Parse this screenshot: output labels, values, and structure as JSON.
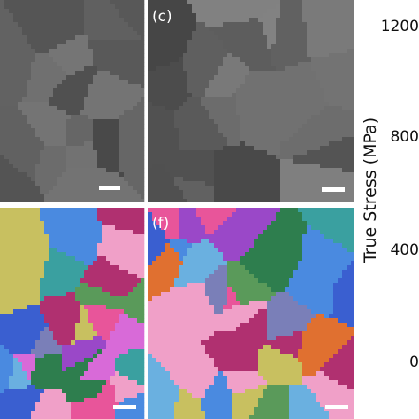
{
  "panels": [
    {
      "label": "(c)"
    },
    {
      "label": "(f)"
    }
  ],
  "axis": {
    "label": "True Stress (MPa)",
    "ticks": [
      1200,
      800,
      400,
      0
    ]
  }
}
